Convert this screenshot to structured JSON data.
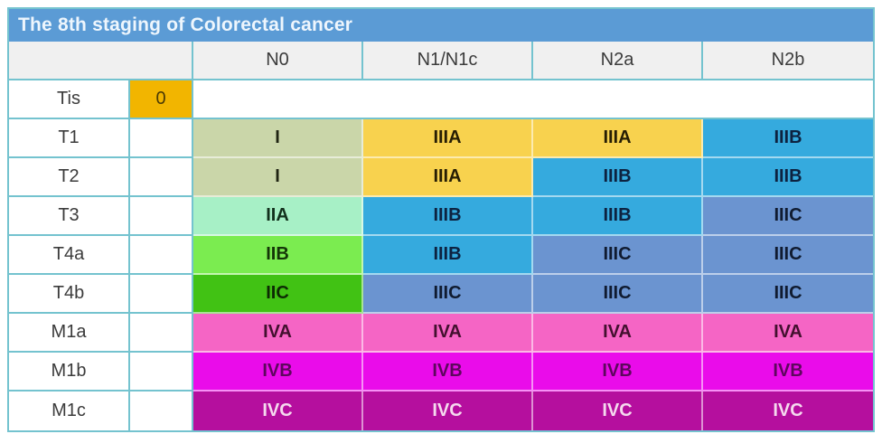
{
  "title": "The 8th staging of Colorectal cancer",
  "colors": {
    "title_bar_bg": "#5b9bd5",
    "title_text": "#eef6fd",
    "header_bg": "#f0f0f0",
    "grid_line_teal": "#74c3cf",
    "label_text": "#3b3b3b"
  },
  "stage_styles": {
    "0": {
      "bg": "#f2b500",
      "fg": "#4a3a05"
    },
    "I": {
      "bg": "#cad6a9",
      "fg": "#1f2412"
    },
    "IIA": {
      "bg": "#a7f0c6",
      "fg": "#12301c"
    },
    "IIB": {
      "bg": "#7bec50",
      "fg": "#143508"
    },
    "IIC": {
      "bg": "#41c214",
      "fg": "#0d2a04"
    },
    "IIIA": {
      "bg": "#f8d24e",
      "fg": "#271e04"
    },
    "IIIB": {
      "bg": "#35aade",
      "fg": "#0d2240"
    },
    "IIIC": {
      "bg": "#6b94d0",
      "fg": "#101b30"
    },
    "IVA": {
      "bg": "#f565c5",
      "fg": "#43102f"
    },
    "IVB": {
      "bg": "#ea0cea",
      "fg": "#5e075e"
    },
    "IVC": {
      "bg": "#b50f9e",
      "fg": "#f5d9ee"
    }
  },
  "chart_data": {
    "type": "table",
    "title": "The 8th staging of Colorectal cancer",
    "corner_label": "",
    "column_headers": [
      "N0",
      "N1/N1c",
      "N2a",
      "N2b"
    ],
    "rows": [
      {
        "label": "Tis",
        "stage_col": "0",
        "merged_blank": true,
        "cells": [
          null,
          null,
          null,
          null
        ]
      },
      {
        "label": "T1",
        "stage_col": null,
        "merged_blank": false,
        "cells": [
          "I",
          "IIIA",
          "IIIA",
          "IIIB"
        ]
      },
      {
        "label": "T2",
        "stage_col": null,
        "merged_blank": false,
        "cells": [
          "I",
          "IIIA",
          "IIIB",
          "IIIB"
        ]
      },
      {
        "label": "T3",
        "stage_col": null,
        "merged_blank": false,
        "cells": [
          "IIA",
          "IIIB",
          "IIIB",
          "IIIC"
        ]
      },
      {
        "label": "T4a",
        "stage_col": null,
        "merged_blank": false,
        "cells": [
          "IIB",
          "IIIB",
          "IIIC",
          "IIIC"
        ]
      },
      {
        "label": "T4b",
        "stage_col": null,
        "merged_blank": false,
        "cells": [
          "IIC",
          "IIIC",
          "IIIC",
          "IIIC"
        ]
      },
      {
        "label": "M1a",
        "stage_col": null,
        "merged_blank": false,
        "cells": [
          "IVA",
          "IVA",
          "IVA",
          "IVA"
        ]
      },
      {
        "label": "M1b",
        "stage_col": null,
        "merged_blank": false,
        "cells": [
          "IVB",
          "IVB",
          "IVB",
          "IVB"
        ]
      },
      {
        "label": "M1c",
        "stage_col": null,
        "merged_blank": false,
        "cells": [
          "IVC",
          "IVC",
          "IVC",
          "IVC"
        ]
      }
    ]
  }
}
